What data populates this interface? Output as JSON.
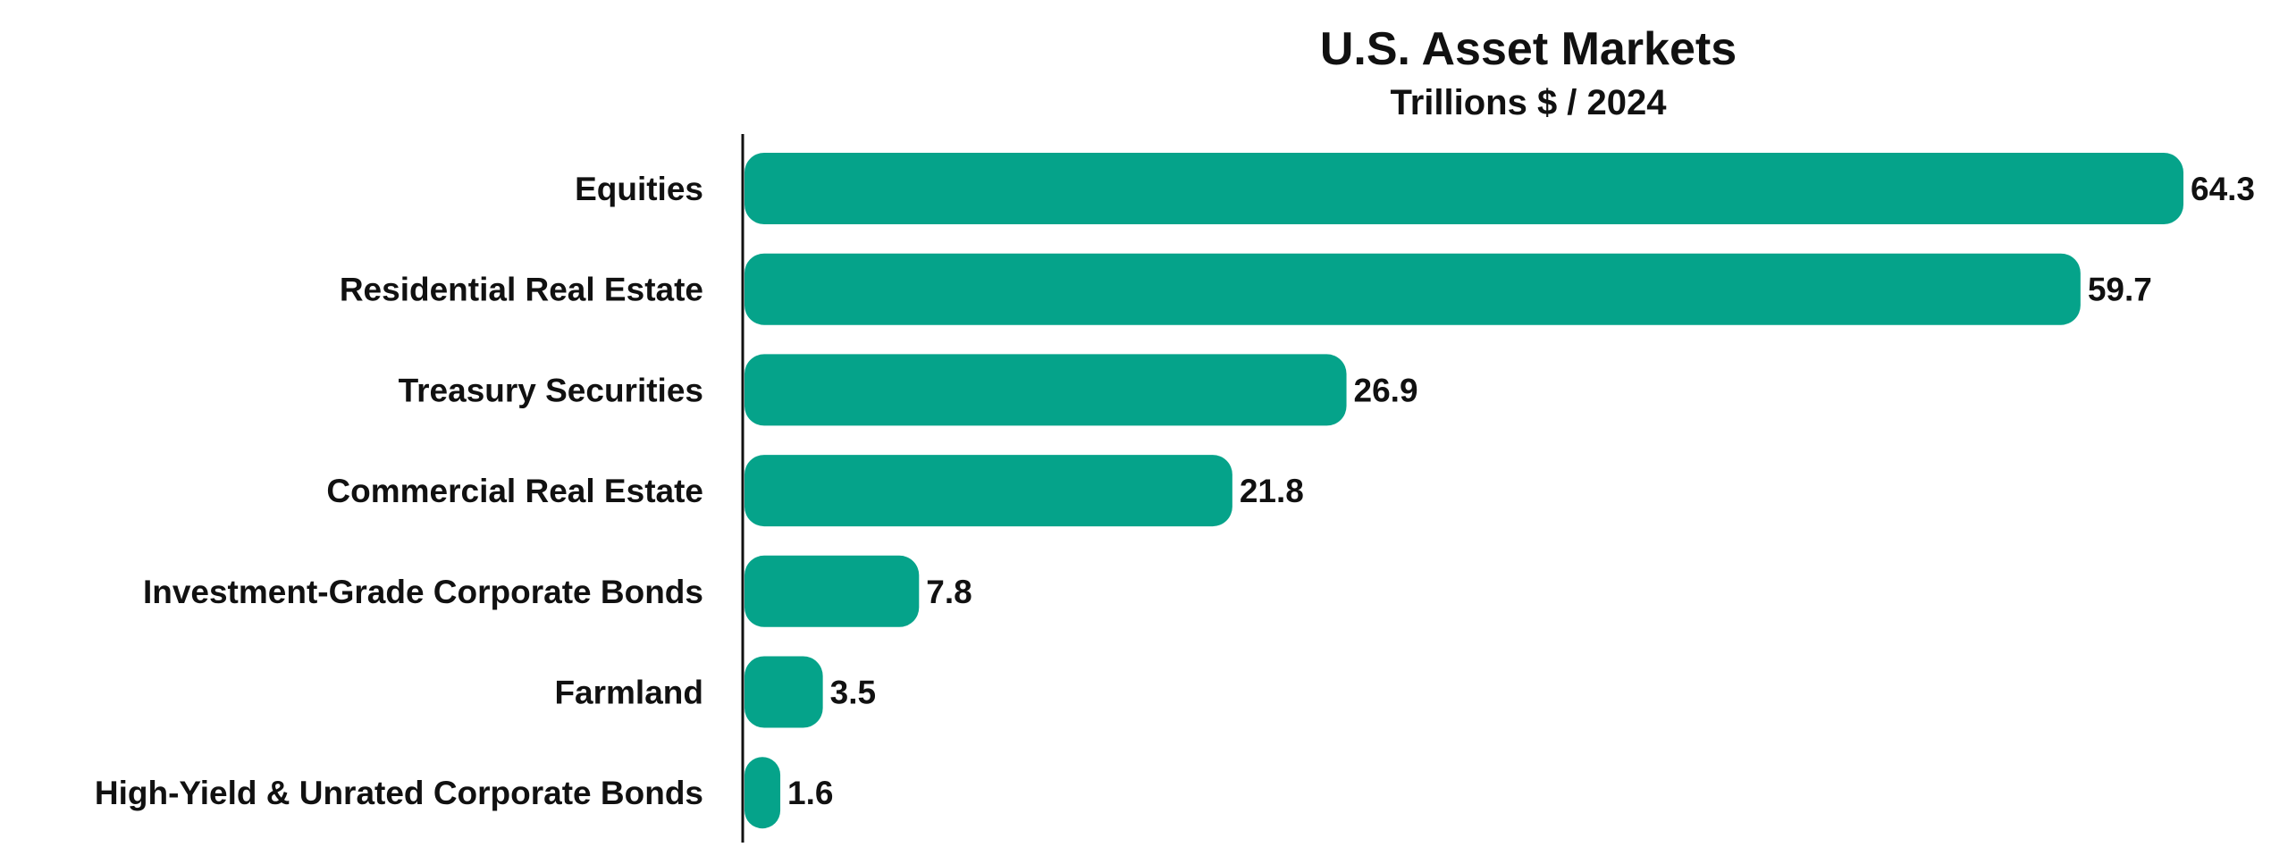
{
  "chart_data": {
    "type": "bar",
    "orientation": "horizontal",
    "title": "U.S. Asset Markets",
    "subtitle": "Trillions $ / 2024",
    "xlabel": "",
    "ylabel": "",
    "categories": [
      "Equities",
      "Residential Real Estate",
      "Treasury Securities",
      "Commercial Real Estate",
      "Investment-Grade Corporate Bonds",
      "Farmland",
      "High-Yield & Unrated Corporate Bonds"
    ],
    "values": [
      64.3,
      59.7,
      26.9,
      21.8,
      7.8,
      3.5,
      1.6
    ],
    "value_labels": [
      "64.3",
      "59.7",
      "26.9",
      "21.8",
      "7.8",
      "3.5",
      "1.6"
    ],
    "xlim": [
      0,
      64.3
    ],
    "grid": false,
    "legend": "none",
    "colors": {
      "bar": "#05a38a",
      "text": "#111111",
      "axis": "#111111"
    }
  }
}
